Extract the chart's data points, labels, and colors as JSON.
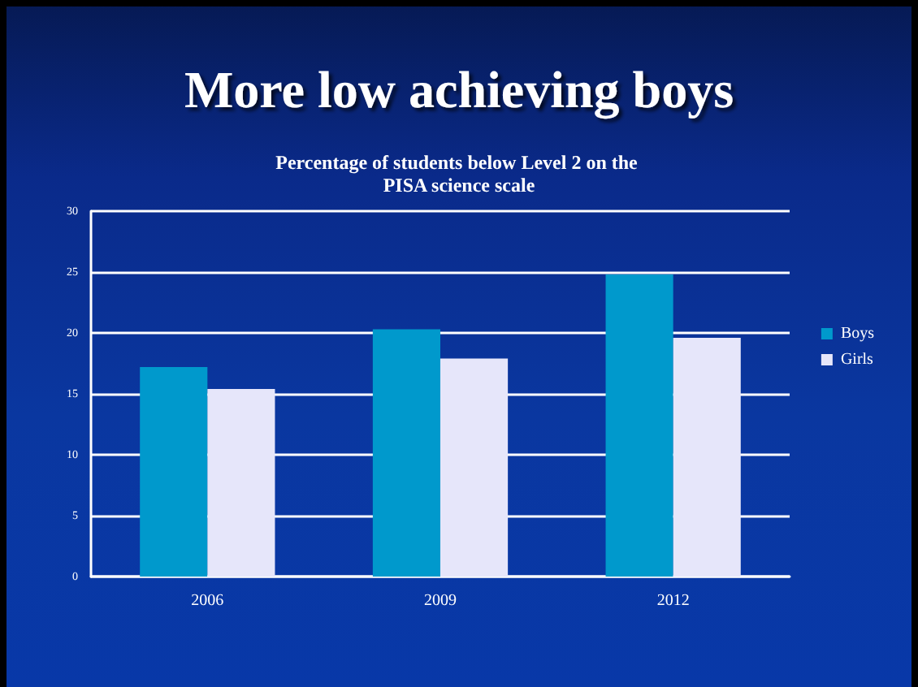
{
  "chart_data": {
    "type": "bar",
    "title": "More low achieving boys",
    "subtitle": "Percentage of students below Level 2 on the PISA science scale",
    "categories": [
      "2006",
      "2009",
      "2012"
    ],
    "series": [
      {
        "name": "Boys",
        "color": "#0099cc",
        "values": [
          17.2,
          20.3,
          24.8
        ]
      },
      {
        "name": "Girls",
        "color": "#e6e6fa",
        "values": [
          15.4,
          17.9,
          19.6
        ]
      }
    ],
    "ylim": [
      0,
      30
    ],
    "yticks": [
      0,
      5,
      10,
      15,
      20,
      25,
      30
    ],
    "grid": "y",
    "legend": "right"
  }
}
